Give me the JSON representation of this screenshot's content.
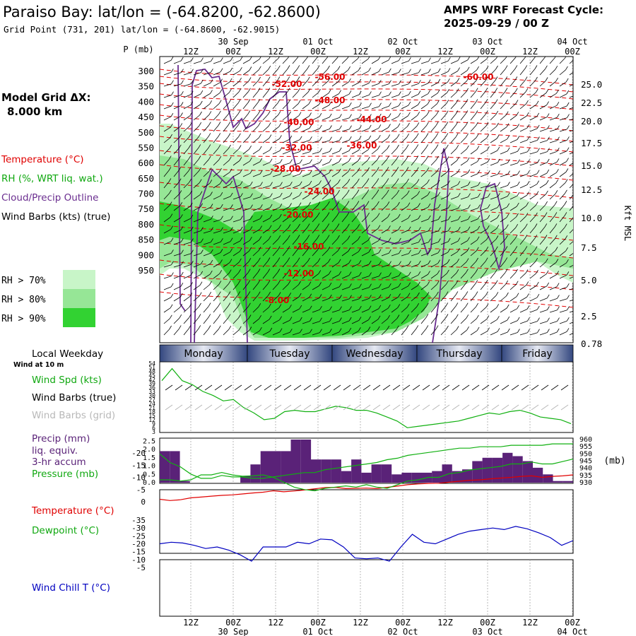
{
  "header": {
    "title": "Paraiso Bay:  lat/lon = (-64.8200, -62.8600)",
    "subtitle": "Grid Point (731, 201) lat/lon = (-64.8600, -62.9015)",
    "cycle_line1": "AMPS WRF Forecast Cycle:",
    "cycle_line2": "2025-09-29 / 00  Z"
  },
  "left_labels": {
    "model_grid": "Model Grid ΔX:",
    "grid_value": "8.000 km",
    "temperature": "Temperature (°C)",
    "rh": "RH (%, WRT liq. wat.)",
    "cloud": "Cloud/Precip Outline",
    "wind": "Wind Barbs (kts) (true)",
    "rh70": "RH > 70%",
    "rh80": "RH > 80%",
    "rh90": "RH > 90%",
    "local_weekday": "Local Weekday",
    "wind_at": "Wind at 10 m",
    "wind_spd": "Wind Spd (kts)",
    "wind_barbs_true": "Wind Barbs (true)",
    "wind_barbs_grid": "Wind Barbs (grid)",
    "precip": "Precip (mm)",
    "liq_equiv": "liq. equiv.",
    "accum": "3-hr accum",
    "pressure": "Pressure (mb)",
    "temp2": "Temperature (°C)",
    "dewpoint": "Dewpoint (°C)",
    "windchill": "Wind Chill T (°C)"
  },
  "colors": {
    "rh70": "#c8f5c8",
    "rh80": "#96e696",
    "rh90": "#32d232",
    "temperature": "#e00000",
    "dewpoint": "#00c000",
    "cloud": "#6a2d8f",
    "precip": "#5a2278",
    "pressure": "#10b010",
    "windchill": "#0000c0",
    "weekday_band": "#5a6eaa"
  },
  "chart_data": [
    {
      "type": "heatmap",
      "name": "cross-section",
      "p_label": "P (mb)",
      "height_label": "Kft MSL",
      "time_top": [
        "12Z",
        "00Z",
        "12Z",
        "00Z",
        "12Z",
        "00Z",
        "12Z",
        "00Z",
        "12Z",
        "00Z"
      ],
      "date_top": [
        "30 Sep",
        "01 Oct",
        "02 Oct",
        "03 Oct",
        "04 Oct"
      ],
      "pressure_ticks": [
        300,
        350,
        400,
        450,
        500,
        550,
        600,
        650,
        700,
        750,
        800,
        850,
        900,
        950
      ],
      "height_ticks": [
        "25.0",
        "22.5",
        "20.0",
        "17.5",
        "15.0",
        "12.5",
        "10.0",
        "7.5",
        "5.0",
        "2.5",
        "0.78"
      ],
      "temperature_labels": [
        "-60.00",
        "-56.00",
        "-52.00",
        "-48.00",
        "-44.00",
        "-40.00",
        "-36.00",
        "-32.00",
        "-28.00",
        "-24.00",
        "-20.00",
        "-16.00",
        "-12.00",
        "-8.00"
      ],
      "legend": [
        "RH > 70%",
        "RH > 80%",
        "RH > 90%"
      ]
    },
    {
      "type": "table",
      "name": "weekday band",
      "days": [
        "Monday",
        "Tuesday",
        "Wednesday",
        "Thursday",
        "Friday"
      ]
    },
    {
      "type": "line",
      "name": "wind speed",
      "y_ticks": [
        3,
        6,
        9,
        12,
        15,
        18,
        21,
        24,
        27,
        30,
        33,
        36,
        39,
        42,
        45,
        48,
        51,
        54
      ],
      "ylim": [
        3,
        54
      ],
      "series": [
        {
          "name": "Wind Spd (kts)",
          "x": [
            0,
            1,
            2,
            3,
            4,
            5,
            6,
            7,
            8,
            9,
            10,
            11,
            12,
            13,
            14,
            15,
            16,
            17,
            18,
            19,
            20,
            21,
            22,
            23,
            24,
            25,
            26,
            27,
            28,
            29,
            30,
            31,
            32,
            33,
            34,
            35,
            36,
            37,
            38,
            39,
            40
          ],
          "values": [
            41,
            50,
            41,
            38,
            33,
            30,
            26,
            27,
            21,
            17,
            12,
            13,
            18,
            19,
            18,
            18,
            20,
            22,
            21,
            19,
            19,
            17,
            14,
            11,
            6,
            7,
            8,
            9,
            10,
            11,
            13,
            15,
            17,
            16,
            18,
            19,
            17,
            14,
            13,
            12,
            9
          ]
        }
      ]
    },
    {
      "type": "bar",
      "name": "precip and pressure",
      "y_ticks": [
        0.0,
        0.5,
        1.0,
        1.5,
        2.0,
        2.5
      ],
      "y2_ticks": [
        930,
        935,
        940,
        945,
        950,
        955,
        960
      ],
      "precip": [
        1.9,
        1.9,
        0.1,
        0,
        0,
        0,
        0,
        0,
        0.4,
        1.1,
        1.9,
        1.9,
        1.9,
        2.6,
        2.6,
        1.4,
        1.4,
        1.4,
        0.7,
        1.4,
        0.6,
        1.1,
        1.1,
        0.5,
        0.6,
        0.6,
        0.6,
        0.7,
        1.1,
        0.7,
        0.8,
        1.3,
        1.5,
        1.5,
        1.8,
        1.6,
        1.3,
        0.9,
        0.5,
        0.1,
        0.1
      ],
      "pressure": [
        950,
        944,
        941,
        936,
        933,
        933,
        935,
        934,
        934,
        933,
        933,
        934,
        935,
        936,
        937,
        937,
        939,
        940,
        941,
        942,
        943,
        944,
        946,
        947,
        949,
        950,
        951,
        952,
        953,
        954,
        954,
        955,
        955,
        955,
        956,
        956,
        956,
        956,
        957,
        957,
        957
      ]
    },
    {
      "type": "line",
      "name": "temperature and dewpoint",
      "y_ticks": [
        0,
        -5,
        -10,
        -15,
        -20
      ],
      "ylim": [
        -20,
        3
      ],
      "series": [
        {
          "name": "Temperature (°C)",
          "values": [
            -1,
            -0.5,
            -0.8,
            -1.6,
            -1.9,
            -2.3,
            -2.6,
            -2.8,
            -3.2,
            -3.6,
            -3.9,
            -4.5,
            -4.1,
            -4.4,
            -4.8,
            -5.3,
            -5.8,
            -5.9,
            -5.4,
            -5.5,
            -5.6,
            -5.4,
            -5.9,
            -6.4,
            -7.0,
            -7.3,
            -7.5,
            -7.6,
            -8.0,
            -8.4,
            -8.8,
            -9.0,
            -9.4,
            -9.7,
            -10.0,
            -10.4,
            -10.6,
            -10.0,
            -10.4,
            -10.6,
            -11.0
          ]
        },
        {
          "name": "Dewpoint (°C)",
          "values": [
            -9,
            -9,
            -8.5,
            -9,
            -11,
            -11,
            -12,
            -11,
            -10.5,
            -10.6,
            -11,
            -10,
            -8,
            -6,
            -5,
            -4.5,
            -5.5,
            -6,
            -6.5,
            -6,
            -7,
            -6,
            -5.5,
            -7,
            -8.5,
            -9,
            -10,
            -10,
            -11.5,
            -12,
            -13,
            -13.5,
            -14,
            -14.5,
            -15.5,
            -15.5,
            -16.3,
            -15.5,
            -15.5,
            -16.5,
            -17.5
          ]
        }
      ]
    },
    {
      "type": "line",
      "name": "wind chill",
      "y_ticks": [
        -5,
        -10,
        -15,
        -20,
        -25,
        -30,
        -35
      ],
      "ylim": [
        -35,
        -5
      ],
      "series": [
        {
          "name": "Wind Chill T (°C)",
          "values": [
            -20,
            -21,
            -20.5,
            -19,
            -17,
            -18,
            -16,
            -13,
            -9,
            -18,
            -18,
            -18,
            -21,
            -20,
            -23,
            -22.5,
            -18,
            -11,
            -10.5,
            -11,
            -9,
            -18,
            -26,
            -21,
            -20,
            -23,
            -26,
            -28,
            -29,
            -30,
            -29,
            -31,
            -29.5,
            -27,
            -24,
            -19,
            -22
          ]
        }
      ]
    },
    {
      "type": "table",
      "name": "bottom time axis",
      "time_bottom": [
        "12Z",
        "00Z",
        "12Z",
        "00Z",
        "12Z",
        "00Z",
        "12Z",
        "00Z",
        "12Z",
        "00Z"
      ],
      "date_bottom": [
        "30 Sep",
        "01 Oct",
        "02 Oct",
        "03 Oct",
        "04 Oct"
      ]
    }
  ]
}
